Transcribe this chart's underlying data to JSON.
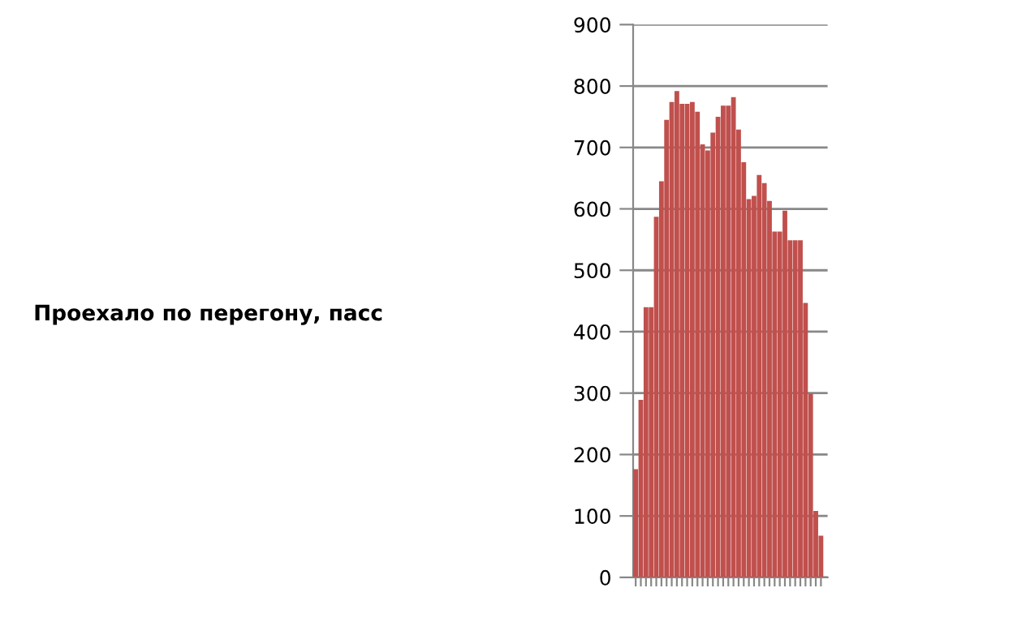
{
  "chart_data": {
    "type": "bar",
    "annotations": [
      "Проехало по перегону, пасс"
    ],
    "categories": [
      null,
      null,
      null,
      null,
      null,
      null,
      null,
      null,
      null,
      null,
      null,
      null,
      null,
      null,
      null,
      null,
      null,
      null,
      null,
      null,
      null,
      null,
      null,
      null,
      null,
      null,
      null,
      null,
      null,
      null,
      null,
      null,
      null,
      null,
      null,
      null,
      null
    ],
    "values": [
      176,
      289,
      440,
      440,
      587,
      645,
      745,
      774,
      792,
      771,
      771,
      774,
      758,
      705,
      695,
      724,
      750,
      768,
      768,
      782,
      729,
      676,
      616,
      621,
      655,
      642,
      613,
      563,
      563,
      597,
      549,
      549,
      549,
      447,
      299,
      108,
      68
    ],
    "color": "#c0504d",
    "ylim": [
      0,
      900
    ],
    "yticks": [
      0,
      100,
      200,
      300,
      400,
      500,
      600,
      700,
      800,
      900
    ],
    "grid": "y"
  }
}
